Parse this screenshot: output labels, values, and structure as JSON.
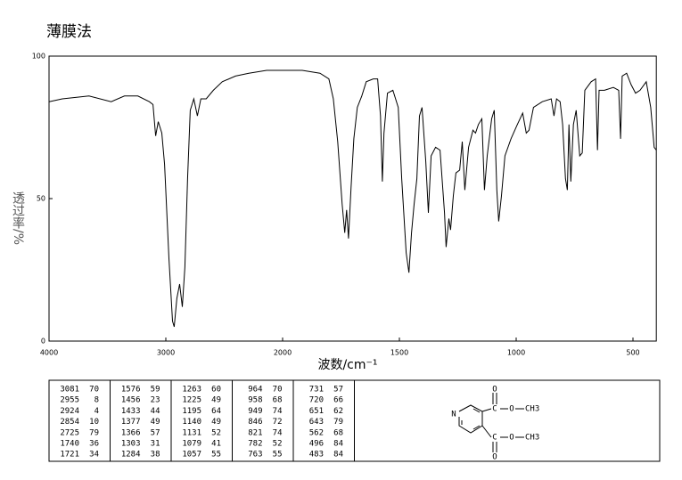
{
  "chart_data": {
    "type": "line",
    "title": "薄膜法",
    "x_label": "波数/cm⁻¹",
    "y_label": "透过率/%",
    "xlim": [
      4000,
      400
    ],
    "ylim": [
      0,
      100
    ],
    "xticks": [
      4000,
      3000,
      2000,
      1500,
      1000,
      500
    ],
    "yticks": [
      0,
      50,
      100
    ],
    "color": "#000000",
    "x": [
      4000,
      3886,
      3658,
      3468,
      3354,
      3240,
      3141,
      3110,
      3087,
      3065,
      3034,
      3011,
      2973,
      2943,
      2928,
      2905,
      2882,
      2859,
      2837,
      2814,
      2791,
      2760,
      2730,
      2700,
      2654,
      2593,
      2517,
      2403,
      2289,
      2137,
      1992,
      1916,
      1840,
      1802,
      1783,
      1764,
      1745,
      1734,
      1726,
      1718,
      1707,
      1695,
      1680,
      1661,
      1642,
      1612,
      1593,
      1581,
      1573,
      1566,
      1551,
      1528,
      1505,
      1490,
      1471,
      1459,
      1448,
      1437,
      1425,
      1414,
      1403,
      1387,
      1376,
      1364,
      1345,
      1326,
      1307,
      1300,
      1288,
      1281,
      1269,
      1258,
      1242,
      1231,
      1220,
      1204,
      1185,
      1174,
      1162,
      1147,
      1136,
      1124,
      1105,
      1094,
      1083,
      1075,
      1063,
      1048,
      1022,
      995,
      972,
      957,
      945,
      926,
      888,
      850,
      838,
      827,
      812,
      801,
      789,
      781,
      774,
      766,
      755,
      743,
      728,
      717,
      706,
      679,
      660,
      652,
      645,
      622,
      584,
      561,
      553,
      546,
      527,
      508,
      489,
      470,
      443,
      424,
      409,
      400
    ],
    "values": [
      84,
      85,
      86,
      84,
      86,
      86,
      84,
      83,
      72,
      77,
      73,
      62,
      29,
      7,
      5,
      15,
      20,
      12,
      26,
      57,
      81,
      85,
      79,
      85,
      85,
      88,
      91,
      93,
      94,
      95,
      95,
      95,
      94,
      92,
      85,
      70,
      48,
      38,
      46,
      36,
      54,
      71,
      82,
      86,
      91,
      92,
      92,
      79,
      56,
      73,
      87,
      88,
      82,
      57,
      31,
      24,
      38,
      48,
      57,
      79,
      82,
      63,
      45,
      65,
      68,
      67,
      45,
      33,
      43,
      39,
      51,
      59,
      60,
      70,
      53,
      68,
      74,
      73,
      76,
      78,
      53,
      65,
      78,
      81,
      53,
      42,
      51,
      65,
      71,
      76,
      80,
      73,
      74,
      82,
      84,
      85,
      79,
      85,
      84,
      76,
      57,
      53,
      76,
      56,
      76,
      81,
      65,
      66,
      88,
      91,
      92,
      67,
      88,
      88,
      89,
      88,
      71,
      93,
      94,
      90,
      87,
      88,
      91,
      82,
      68,
      67
    ]
  },
  "peak_table": [
    [
      [
        3081,
        70
      ],
      [
        2955,
        8
      ],
      [
        2924,
        4
      ],
      [
        2854,
        10
      ],
      [
        2725,
        79
      ],
      [
        1740,
        36
      ],
      [
        1721,
        34
      ]
    ],
    [
      [
        1576,
        59
      ],
      [
        1456,
        23
      ],
      [
        1433,
        44
      ],
      [
        1377,
        49
      ],
      [
        1366,
        57
      ],
      [
        1303,
        31
      ],
      [
        1284,
        38
      ]
    ],
    [
      [
        1263,
        60
      ],
      [
        1225,
        49
      ],
      [
        1195,
        64
      ],
      [
        1140,
        49
      ],
      [
        1131,
        52
      ],
      [
        1079,
        41
      ],
      [
        1057,
        55
      ]
    ],
    [
      [
        964,
        70
      ],
      [
        958,
        68
      ],
      [
        949,
        74
      ],
      [
        846,
        72
      ],
      [
        821,
        74
      ],
      [
        782,
        52
      ],
      [
        763,
        55
      ]
    ],
    [
      [
        731,
        57
      ],
      [
        720,
        66
      ],
      [
        651,
        62
      ],
      [
        643,
        79
      ],
      [
        562,
        68
      ],
      [
        496,
        84
      ],
      [
        483,
        84
      ]
    ]
  ],
  "structure": {
    "ring_n": "N",
    "top_ester": {
      "carbonyl_o": "O",
      "carbon": "C",
      "ether_o": "O",
      "methyl": "CH3"
    },
    "bottom_ester": {
      "carbonyl_o": "O",
      "carbon": "C",
      "ether_o": "O",
      "methyl": "CH3"
    }
  }
}
